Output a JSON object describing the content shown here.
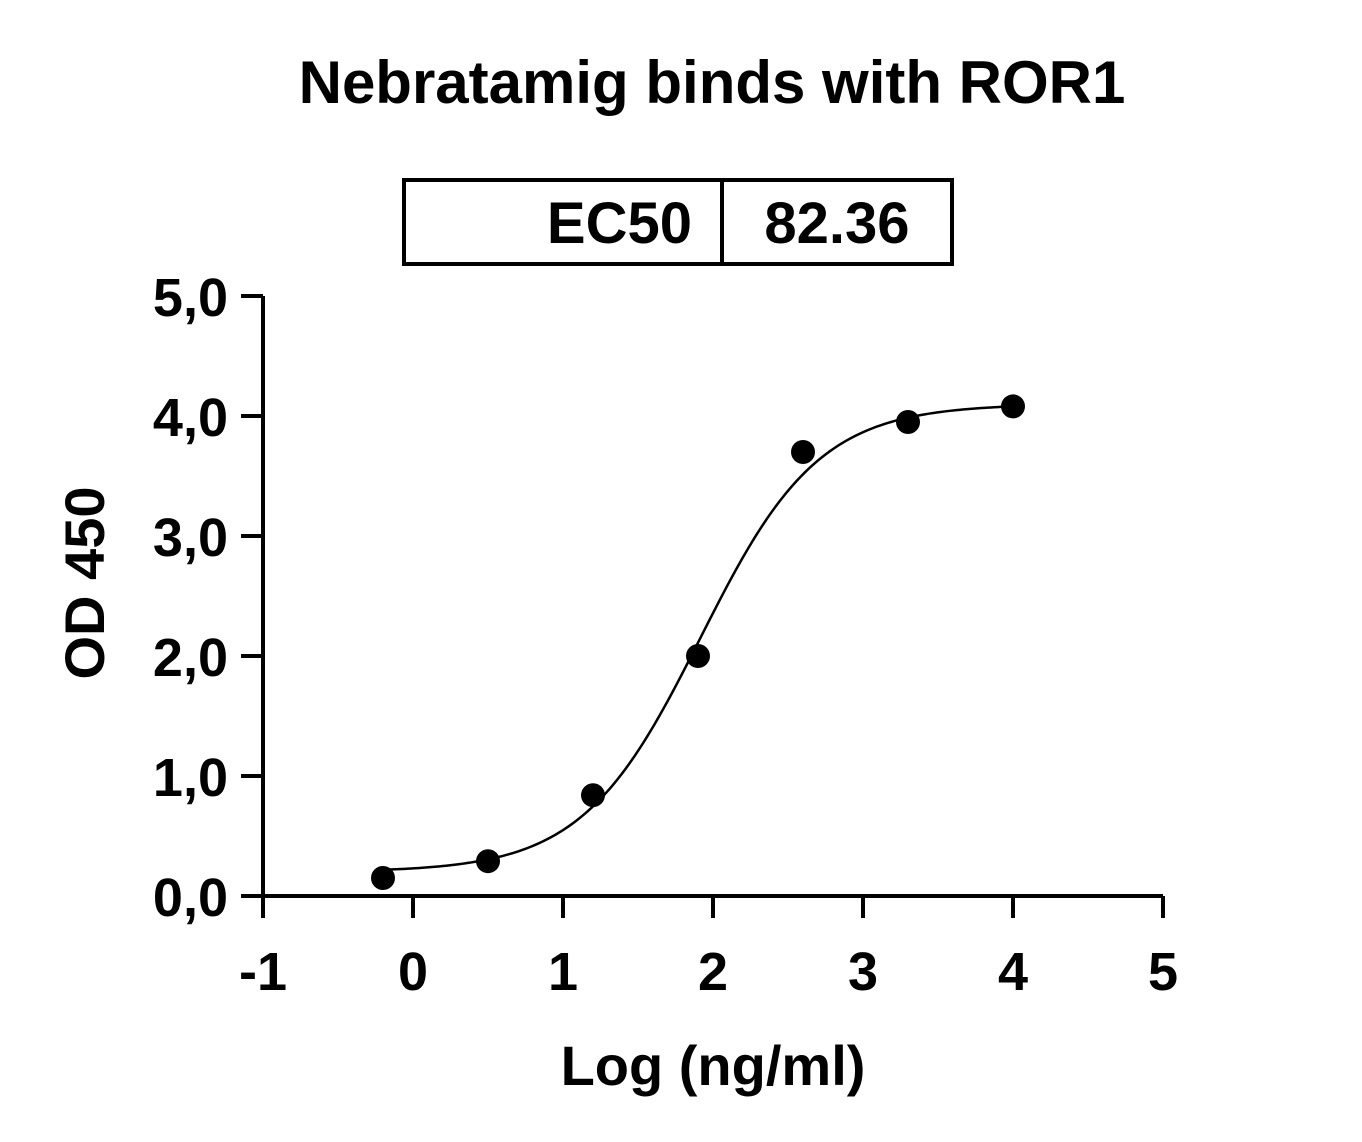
{
  "chart_data": {
    "type": "scatter",
    "title": "Nebratamig binds with ROR1",
    "xlabel": "Log (ng/ml)",
    "ylabel": "OD 450",
    "xlim": [
      -1,
      5
    ],
    "ylim": [
      0,
      5
    ],
    "x_ticks": [
      {
        "value": -1,
        "label": "-1"
      },
      {
        "value": 0,
        "label": "0"
      },
      {
        "value": 1,
        "label": "1"
      },
      {
        "value": 2,
        "label": "2"
      },
      {
        "value": 3,
        "label": "3"
      },
      {
        "value": 4,
        "label": "4"
      },
      {
        "value": 5,
        "label": "5"
      }
    ],
    "y_ticks": [
      {
        "value": 0,
        "label": "0,0"
      },
      {
        "value": 1,
        "label": "1,0"
      },
      {
        "value": 2,
        "label": "2,0"
      },
      {
        "value": 3,
        "label": "3,0"
      },
      {
        "value": 4,
        "label": "4,0"
      },
      {
        "value": 5,
        "label": "5,0"
      }
    ],
    "points": [
      {
        "x": -0.2,
        "y": 0.15
      },
      {
        "x": 0.5,
        "y": 0.29
      },
      {
        "x": 1.2,
        "y": 0.84
      },
      {
        "x": 1.9,
        "y": 2.0
      },
      {
        "x": 2.6,
        "y": 3.7
      },
      {
        "x": 3.3,
        "y": 3.95
      },
      {
        "x": 4.0,
        "y": 4.08
      }
    ],
    "fit": {
      "model": "four-parameter logistic",
      "bottom": 0.2,
      "top": 4.1,
      "log_ec50": 1.9157,
      "hill_slope": 1.1,
      "x_range": [
        -0.2,
        4.0
      ]
    },
    "ec50_table": {
      "label": "EC50",
      "value": "82.36"
    },
    "grid": false,
    "legend": "none"
  }
}
